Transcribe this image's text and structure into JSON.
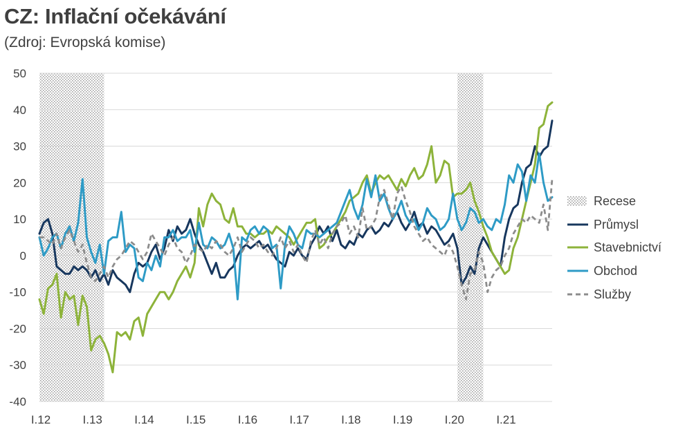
{
  "title": "CZ: Inflační očekávání",
  "subtitle": "(Zdroj: Evropská komise)",
  "colors": {
    "Průmysl": "#17375e",
    "Stavebnictví": "#8db33a",
    "Obchod": "#2e9bc6",
    "Služby": "#8c8c8c",
    "grid": "#d9d9d9",
    "recession": "#d0d0d0"
  },
  "chart_data": {
    "type": "line",
    "title": "CZ: Inflační očekávání",
    "xlabel": "",
    "ylabel": "",
    "ylim": [
      -40,
      50
    ],
    "y_ticks": [
      50,
      40,
      30,
      20,
      10,
      0,
      -10,
      -20,
      -30,
      -40
    ],
    "x_tick_labels": [
      "I.12",
      "I.13",
      "I.14",
      "I.15",
      "I.16",
      "I.17",
      "I.18",
      "I.19",
      "I.20",
      "I.21"
    ],
    "x_start": "2012-01",
    "months_count": 120,
    "recessions": [
      {
        "name": "Recese",
        "start_month_index": 0,
        "end_month_index": 15
      },
      {
        "name": "Recese",
        "start_month_index": 97,
        "end_month_index": 103
      }
    ],
    "legend": [
      "Recese",
      "Průmysl",
      "Stavebnictví",
      "Obchod",
      "Služby"
    ],
    "series": [
      {
        "name": "Průmysl",
        "style": "solid",
        "values": [
          6,
          9,
          10,
          6,
          -3,
          -4,
          -5,
          -5,
          -3,
          -4,
          -3,
          -4,
          -6,
          -4,
          -7,
          -5,
          -8,
          -4,
          -6,
          -7,
          -8,
          -10,
          -5,
          -2,
          -3,
          -2,
          1,
          3,
          -1,
          2,
          7,
          4,
          8,
          6,
          7,
          10,
          6,
          3,
          1,
          -2,
          -5,
          -2,
          -6,
          -6,
          -4,
          -3,
          0,
          2,
          3,
          2,
          3,
          4,
          2,
          3,
          1,
          -1,
          -2,
          -3,
          1,
          0,
          2,
          0,
          -1,
          3,
          5,
          8,
          6,
          8,
          4,
          7,
          3,
          2,
          4,
          3,
          6,
          5,
          7,
          8,
          6,
          7,
          9,
          8,
          10,
          12,
          9,
          7,
          9,
          12,
          8,
          9,
          6,
          8,
          7,
          5,
          3,
          4,
          6,
          2,
          -8,
          -6,
          -3,
          -5,
          2,
          5,
          3,
          1,
          -1,
          -3,
          5,
          10,
          13,
          14,
          20,
          24,
          25,
          30,
          27,
          29,
          30,
          37
        ]
      },
      {
        "name": "Stavebnictví",
        "style": "solid",
        "values": [
          -12,
          -16,
          -9,
          -8,
          -5,
          -17,
          -10,
          -12,
          -11,
          -19,
          -11,
          -14,
          -26,
          -23,
          -22,
          -24,
          -27,
          -32,
          -21,
          -22,
          -21,
          -23,
          -18,
          -17,
          -22,
          -16,
          -14,
          -12,
          -10,
          -10,
          -12,
          -10,
          -7,
          -5,
          -3,
          -6,
          -2,
          13,
          8,
          14,
          17,
          15,
          14,
          10,
          9,
          13,
          8,
          8,
          6,
          6,
          5,
          6,
          6,
          7,
          6,
          8,
          7,
          6,
          5,
          3,
          5,
          7,
          9,
          9,
          10,
          2,
          3,
          5,
          6,
          8,
          10,
          12,
          15,
          16,
          17,
          20,
          22,
          17,
          20,
          22,
          21,
          22,
          20,
          18,
          21,
          19,
          22,
          24,
          21,
          22,
          25,
          30,
          20,
          22,
          26,
          25,
          16,
          17,
          17,
          18,
          20,
          15,
          12,
          8,
          5,
          1,
          -1,
          -3,
          -5,
          -4,
          2,
          5,
          10,
          15,
          20,
          25,
          35,
          36,
          41,
          42
        ]
      },
      {
        "name": "Obchod",
        "style": "solid",
        "values": [
          5,
          0,
          2,
          5,
          6,
          2,
          6,
          8,
          4,
          9,
          21,
          5,
          1,
          -2,
          3,
          -5,
          4,
          5,
          5,
          12,
          1,
          3,
          2,
          -6,
          -7,
          -2,
          -4,
          0,
          -3,
          5,
          5,
          7,
          4,
          5,
          5,
          7,
          1,
          9,
          3,
          2,
          5,
          4,
          2,
          3,
          6,
          2,
          -12,
          5,
          4,
          7,
          8,
          6,
          8,
          7,
          2,
          3,
          -9,
          3,
          8,
          6,
          3,
          2,
          7,
          6,
          6,
          5,
          6,
          7,
          8,
          9,
          12,
          15,
          18,
          13,
          10,
          14,
          21,
          16,
          22,
          15,
          17,
          13,
          10,
          12,
          15,
          11,
          9,
          10,
          7,
          9,
          13,
          11,
          10,
          7,
          8,
          10,
          17,
          10,
          7,
          9,
          13,
          12,
          9,
          10,
          8,
          7,
          10,
          9,
          14,
          22,
          20,
          25,
          23,
          15,
          22,
          20,
          28,
          20,
          15,
          16
        ]
      },
      {
        "name": "Služby",
        "style": "dashed",
        "values": [
          5,
          5,
          4,
          3,
          6,
          2,
          5,
          7,
          4,
          1,
          3,
          -2,
          -6,
          -7,
          -5,
          -3,
          -6,
          -3,
          -1,
          0,
          2,
          4,
          3,
          1,
          -1,
          1,
          6,
          4,
          2,
          0,
          3,
          5,
          2,
          1,
          -2,
          0,
          3,
          2,
          1,
          3,
          2,
          4,
          3,
          1,
          0,
          2,
          5,
          1,
          3,
          5,
          4,
          2,
          3,
          1,
          0,
          2,
          5,
          2,
          4,
          1,
          3,
          0,
          -2,
          4,
          7,
          3,
          5,
          2,
          6,
          8,
          9,
          11,
          6,
          8,
          5,
          13,
          7,
          8,
          10,
          16,
          18,
          14,
          10,
          17,
          19,
          15,
          12,
          8,
          6,
          4,
          5,
          3,
          2,
          1,
          0,
          3,
          1,
          -3,
          -8,
          -12,
          -5,
          -4,
          1,
          -2,
          -10,
          -6,
          -4,
          -3,
          0,
          2,
          6,
          8,
          10,
          9,
          11,
          10,
          9,
          14,
          7,
          21
        ]
      }
    ]
  }
}
